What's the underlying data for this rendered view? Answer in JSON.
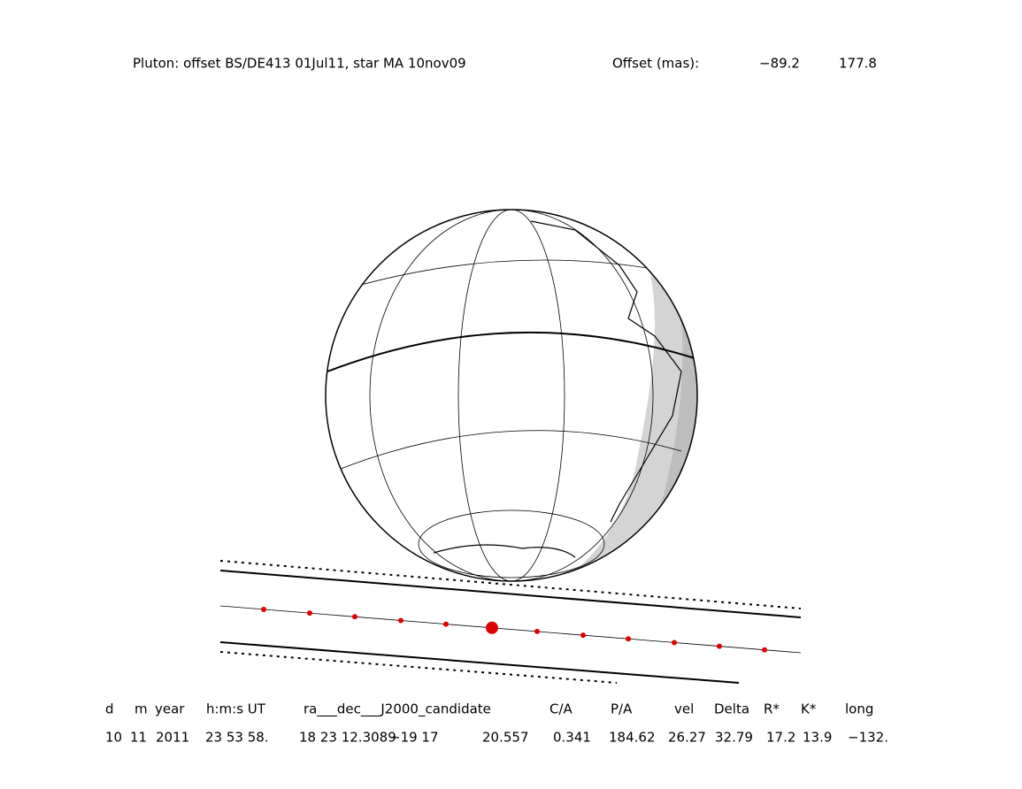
{
  "header": {
    "title": "Pluton: offset BS/DE413 01Jul11, star MA 10nov09",
    "offset_label": "Offset (mas):",
    "offset_ra": "−89.2",
    "offset_dec": "177.8"
  },
  "table": {
    "headers": [
      "d",
      "m",
      "year",
      "h:m:s UT",
      "ra___dec___J2000_candidate",
      "C/A",
      "P/A",
      "vel",
      "Delta",
      "R*",
      "K*",
      "long"
    ],
    "values": [
      "10",
      "11",
      "2011",
      "23 53 58.",
      "18 23 12.3089",
      "−19 17",
      "20.557",
      "0.341",
      "184.62",
      "26.27",
      "32.79",
      "17.2",
      "13.9",
      "−132."
    ]
  }
}
